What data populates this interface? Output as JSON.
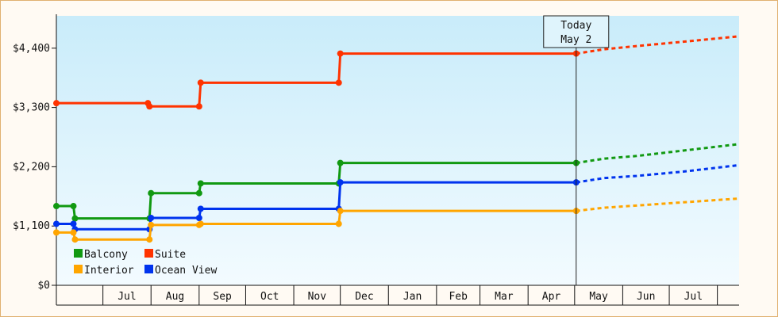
{
  "chart_data": {
    "type": "line",
    "line_style": "step",
    "ylim": [
      0,
      5000
    ],
    "y_ticks": [
      0,
      1100,
      2200,
      3300,
      4400
    ],
    "y_tick_labels": [
      "$0",
      "$1,100",
      "$2,200",
      "$3,300",
      "$4,400"
    ],
    "x_range": [
      "2024-06-01",
      "2025-08-15"
    ],
    "x_months": [
      {
        "label": "",
        "start": "2024-06-01"
      },
      {
        "label": "Jul",
        "start": "2024-07-01"
      },
      {
        "label": "Aug",
        "start": "2024-08-01"
      },
      {
        "label": "Sep",
        "start": "2024-09-01"
      },
      {
        "label": "Oct",
        "start": "2024-10-01"
      },
      {
        "label": "Nov",
        "start": "2024-11-01"
      },
      {
        "label": "Dec",
        "start": "2024-12-01"
      },
      {
        "label": "Jan",
        "start": "2025-01-01"
      },
      {
        "label": "Feb",
        "start": "2025-02-01"
      },
      {
        "label": "Mar",
        "start": "2025-03-01"
      },
      {
        "label": "Apr",
        "start": "2025-04-01"
      },
      {
        "label": "May",
        "start": "2025-05-01"
      },
      {
        "label": "Jun",
        "start": "2025-06-01"
      },
      {
        "label": "Jul",
        "start": "2025-07-01"
      },
      {
        "label": "",
        "start": "2025-08-01"
      }
    ],
    "today": {
      "line1": "Today",
      "line2": "May 2",
      "date": "2025-05-02"
    },
    "grid": false,
    "legend_position": "bottom-left",
    "series": [
      {
        "name": "Suite",
        "color": "#ff3300",
        "points": [
          {
            "x": "2024-06-01",
            "y": 3380
          },
          {
            "x": "2024-07-30",
            "y": 3380
          },
          {
            "x": "2024-07-31",
            "y": 3320
          },
          {
            "x": "2024-09-01",
            "y": 3320
          },
          {
            "x": "2024-09-02",
            "y": 3760
          },
          {
            "x": "2024-11-30",
            "y": 3760
          },
          {
            "x": "2024-12-01",
            "y": 4300
          },
          {
            "x": "2025-05-02",
            "y": 4300
          }
        ],
        "forecast": [
          {
            "x": "2025-05-02",
            "y": 4300
          },
          {
            "x": "2025-05-20",
            "y": 4380
          },
          {
            "x": "2025-06-10",
            "y": 4440
          },
          {
            "x": "2025-06-25",
            "y": 4480
          },
          {
            "x": "2025-07-10",
            "y": 4520
          },
          {
            "x": "2025-08-15",
            "y": 4620
          }
        ]
      },
      {
        "name": "Balcony",
        "color": "#119911",
        "points": [
          {
            "x": "2024-06-01",
            "y": 1470
          },
          {
            "x": "2024-06-12",
            "y": 1470
          },
          {
            "x": "2024-06-13",
            "y": 1240
          },
          {
            "x": "2024-07-31",
            "y": 1240
          },
          {
            "x": "2024-08-01",
            "y": 1710
          },
          {
            "x": "2024-09-01",
            "y": 1710
          },
          {
            "x": "2024-09-02",
            "y": 1890
          },
          {
            "x": "2024-11-30",
            "y": 1890
          },
          {
            "x": "2024-12-01",
            "y": 2270
          },
          {
            "x": "2025-05-02",
            "y": 2270
          }
        ],
        "forecast": [
          {
            "x": "2025-05-02",
            "y": 2270
          },
          {
            "x": "2025-05-20",
            "y": 2350
          },
          {
            "x": "2025-06-10",
            "y": 2400
          },
          {
            "x": "2025-06-25",
            "y": 2450
          },
          {
            "x": "2025-07-10",
            "y": 2500
          },
          {
            "x": "2025-08-15",
            "y": 2620
          }
        ]
      },
      {
        "name": "Ocean View",
        "color": "#0033ee",
        "points": [
          {
            "x": "2024-06-01",
            "y": 1140
          },
          {
            "x": "2024-06-12",
            "y": 1140
          },
          {
            "x": "2024-06-13",
            "y": 1040
          },
          {
            "x": "2024-07-31",
            "y": 1040
          },
          {
            "x": "2024-08-01",
            "y": 1250
          },
          {
            "x": "2024-09-01",
            "y": 1250
          },
          {
            "x": "2024-09-02",
            "y": 1420
          },
          {
            "x": "2024-11-30",
            "y": 1420
          },
          {
            "x": "2024-12-01",
            "y": 1910
          },
          {
            "x": "2025-05-02",
            "y": 1910
          }
        ],
        "forecast": [
          {
            "x": "2025-05-02",
            "y": 1910
          },
          {
            "x": "2025-05-20",
            "y": 1990
          },
          {
            "x": "2025-06-10",
            "y": 2030
          },
          {
            "x": "2025-06-25",
            "y": 2070
          },
          {
            "x": "2025-07-10",
            "y": 2110
          },
          {
            "x": "2025-08-15",
            "y": 2230
          }
        ]
      },
      {
        "name": "Interior",
        "color": "#ffa500",
        "points": [
          {
            "x": "2024-06-01",
            "y": 980
          },
          {
            "x": "2024-06-12",
            "y": 980
          },
          {
            "x": "2024-06-13",
            "y": 850
          },
          {
            "x": "2024-07-31",
            "y": 850
          },
          {
            "x": "2024-08-01",
            "y": 1120
          },
          {
            "x": "2024-09-01",
            "y": 1120
          },
          {
            "x": "2024-09-02",
            "y": 1140
          },
          {
            "x": "2024-11-30",
            "y": 1140
          },
          {
            "x": "2024-12-01",
            "y": 1380
          },
          {
            "x": "2025-05-02",
            "y": 1380
          }
        ],
        "forecast": [
          {
            "x": "2025-05-02",
            "y": 1380
          },
          {
            "x": "2025-05-20",
            "y": 1440
          },
          {
            "x": "2025-06-10",
            "y": 1480
          },
          {
            "x": "2025-06-25",
            "y": 1510
          },
          {
            "x": "2025-07-10",
            "y": 1540
          },
          {
            "x": "2025-08-15",
            "y": 1610
          }
        ]
      }
    ],
    "legend": [
      {
        "name": "Balcony",
        "color": "#119911"
      },
      {
        "name": "Suite",
        "color": "#ff3300"
      },
      {
        "name": "Interior",
        "color": "#ffa500"
      },
      {
        "name": "Ocean View",
        "color": "#0033ee"
      }
    ]
  }
}
